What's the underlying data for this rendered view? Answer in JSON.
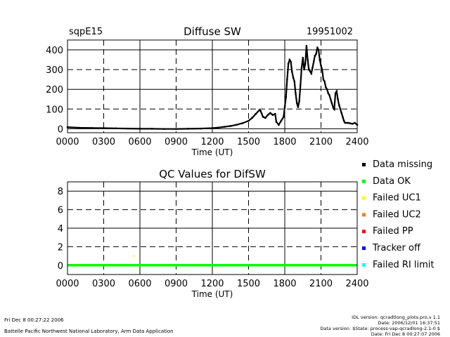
{
  "footer": {
    "left_line1": "Fri Dec  8 00:27:22 2006",
    "left_line2": "Battelle Pacific Northwest National Laboratory, Arm Data Application",
    "right_line1": "IDL version: qcradtlong_plots.pro,v 1.1",
    "right_line2": "Date: 2006/12/01 16:37:51",
    "right_line3": "Data version: $State: process-vap-qcradlong-2.1-0 $",
    "right_line4": "Date: Fri Dec  8 00:27:07 2006"
  },
  "legend": [
    {
      "label": "Data missing",
      "color": "#000000"
    },
    {
      "label": "Data OK",
      "color": "#00ff00"
    },
    {
      "label": "Failed UC1",
      "color": "#ffff00"
    },
    {
      "label": "Failed UC2",
      "color": "#ff8000"
    },
    {
      "label": "Failed PP",
      "color": "#ff0000"
    },
    {
      "label": "Tracker off",
      "color": "#0000ff"
    },
    {
      "label": "Failed RI limit",
      "color": "#00ffff"
    }
  ],
  "chart_data": [
    {
      "type": "scatter",
      "site": "sqpE15",
      "title": "Diffuse SW",
      "date": "19951002",
      "xlabel": "Time (UT)",
      "ylabel": "",
      "xlim": [
        0,
        2400
      ],
      "ylim": [
        -20,
        450
      ],
      "x_ticks": [
        "0000",
        "0300",
        "0600",
        "0900",
        "1200",
        "1500",
        "1800",
        "2100",
        "2400"
      ],
      "y_ticks": [
        0,
        100,
        200,
        300,
        400
      ],
      "grid": true,
      "series": [
        {
          "x": [
            0,
            100,
            200,
            300,
            400,
            500,
            600,
            700,
            800,
            900,
            1000,
            1100,
            1200,
            1250,
            1300,
            1350,
            1400,
            1450,
            1500,
            1530,
            1560,
            1590,
            1600,
            1620,
            1640,
            1660,
            1680,
            1700,
            1720,
            1730,
            1750,
            1770,
            1790,
            1800,
            1810,
            1820,
            1830,
            1840,
            1850,
            1860,
            1870,
            1880,
            1890,
            1900,
            1910,
            1920,
            1930,
            1940,
            1950,
            1960,
            1970,
            1980,
            1990,
            2000,
            2010,
            2020,
            2030,
            2040,
            2050,
            2060,
            2070,
            2080,
            2090,
            2100,
            2110,
            2120,
            2130,
            2140,
            2150,
            2160,
            2170,
            2180,
            2190,
            2200,
            2210,
            2220,
            2230,
            2240,
            2250,
            2260,
            2270,
            2280,
            2290,
            2300,
            2320,
            2340,
            2360,
            2380,
            2400
          ],
          "y": [
            8,
            5,
            4,
            3,
            2,
            1,
            0,
            0,
            -1,
            -1,
            0,
            1,
            3,
            6,
            10,
            14,
            20,
            28,
            40,
            55,
            75,
            95,
            90,
            60,
            55,
            70,
            80,
            70,
            75,
            35,
            20,
            40,
            60,
            110,
            160,
            250,
            330,
            350,
            340,
            290,
            260,
            240,
            180,
            130,
            110,
            140,
            220,
            310,
            360,
            300,
            330,
            420,
            350,
            300,
            290,
            280,
            310,
            340,
            370,
            380,
            410,
            400,
            350,
            320,
            300,
            250,
            240,
            210,
            200,
            180,
            170,
            150,
            130,
            110,
            100,
            180,
            190,
            150,
            120,
            100,
            80,
            60,
            40,
            30,
            30,
            28,
            25,
            30,
            20
          ]
        }
      ]
    },
    {
      "type": "scatter",
      "title": "QC Values for DifSW",
      "xlabel": "Time (UT)",
      "ylabel": "",
      "xlim": [
        0,
        2400
      ],
      "ylim": [
        -1,
        9
      ],
      "x_ticks": [
        "0000",
        "0300",
        "0600",
        "0900",
        "1200",
        "1500",
        "1800",
        "2100",
        "2400"
      ],
      "y_ticks": [
        0,
        2,
        4,
        6,
        8
      ],
      "grid": true,
      "series": [
        {
          "x": [
            0,
            2400
          ],
          "y": [
            0,
            0
          ],
          "color": "#00ff00"
        },
        {
          "x": [
            550
          ],
          "y": [
            1
          ],
          "color": "#ffff00"
        }
      ]
    }
  ]
}
